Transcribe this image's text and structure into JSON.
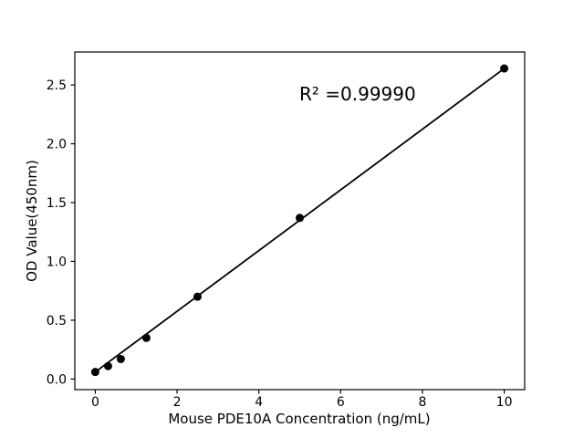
{
  "chart_data": {
    "type": "scatter",
    "title": "",
    "xlabel": "Mouse PDE10A Concentration (ng/mL)",
    "ylabel": "OD Value(450nm)",
    "x": [
      0,
      0.3125,
      0.625,
      1.25,
      2.5,
      5,
      10
    ],
    "y": [
      0.06,
      0.11,
      0.17,
      0.35,
      0.7,
      1.37,
      2.64
    ],
    "trendline": {
      "x": [
        0,
        10
      ],
      "y": [
        0.06,
        2.64
      ]
    },
    "annotation": {
      "text": "R² =0.99990",
      "x": 5.0,
      "y": 2.37
    },
    "xlim": [
      -0.5,
      10.5
    ],
    "ylim": [
      -0.09,
      2.78
    ],
    "xticks": {
      "values": [
        0,
        2,
        4,
        6,
        8,
        10
      ],
      "labels": [
        "0",
        "2",
        "4",
        "6",
        "8",
        "10"
      ]
    },
    "yticks": {
      "values": [
        0,
        0.5,
        1,
        1.5,
        2,
        2.5
      ],
      "labels": [
        "0.0",
        "0.5",
        "1.0",
        "1.5",
        "2.0",
        "2.5"
      ]
    },
    "grid": false,
    "legend_position": "none",
    "marker_color": "#000000",
    "line_color": "#000000",
    "axis_color": "#000000",
    "background_color": "#ffffff"
  }
}
